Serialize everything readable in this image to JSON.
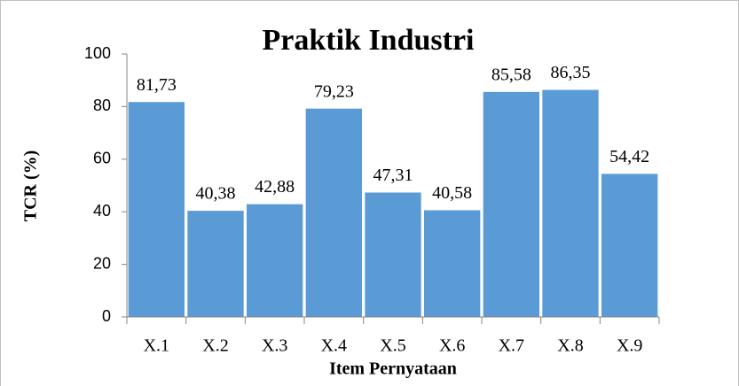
{
  "chart_data": {
    "type": "bar",
    "title": "Praktik Industri",
    "x_label": "Item Pernyataan",
    "y_label": "TCR (%)",
    "categories": [
      "X.1",
      "X.2",
      "X.3",
      "X.4",
      "X.5",
      "X.6",
      "X.7",
      "X.8",
      "X.9"
    ],
    "values": [
      81.73,
      40.38,
      42.88,
      79.23,
      47.31,
      40.58,
      85.58,
      86.35,
      54.42
    ],
    "value_labels": [
      "81,73",
      "40,38",
      "42,88",
      "79,23",
      "47,31",
      "40,58",
      "85,58",
      "86,35",
      "54,42"
    ],
    "color": "#5b9bd5",
    "ylim": [
      0,
      100
    ],
    "yticks": [
      0,
      20,
      40,
      60,
      80,
      100
    ],
    "grid": false
  }
}
